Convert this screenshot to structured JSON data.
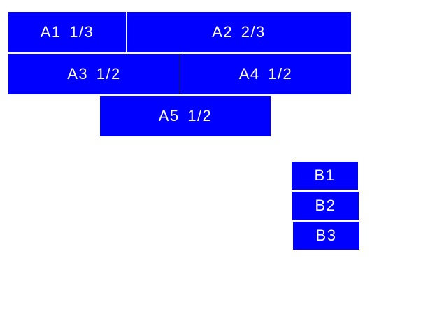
{
  "colors": {
    "box": "#0000ff",
    "text": "#ffffff"
  },
  "group_a": [
    {
      "label": "A1 1/3"
    },
    {
      "label": "A2 2/3"
    },
    {
      "label": "A3 1/2"
    },
    {
      "label": "A4 1/2"
    },
    {
      "label": "A5 1/2"
    }
  ],
  "group_b": [
    {
      "label": "B1"
    },
    {
      "label": "B2"
    },
    {
      "label": "B3"
    }
  ]
}
